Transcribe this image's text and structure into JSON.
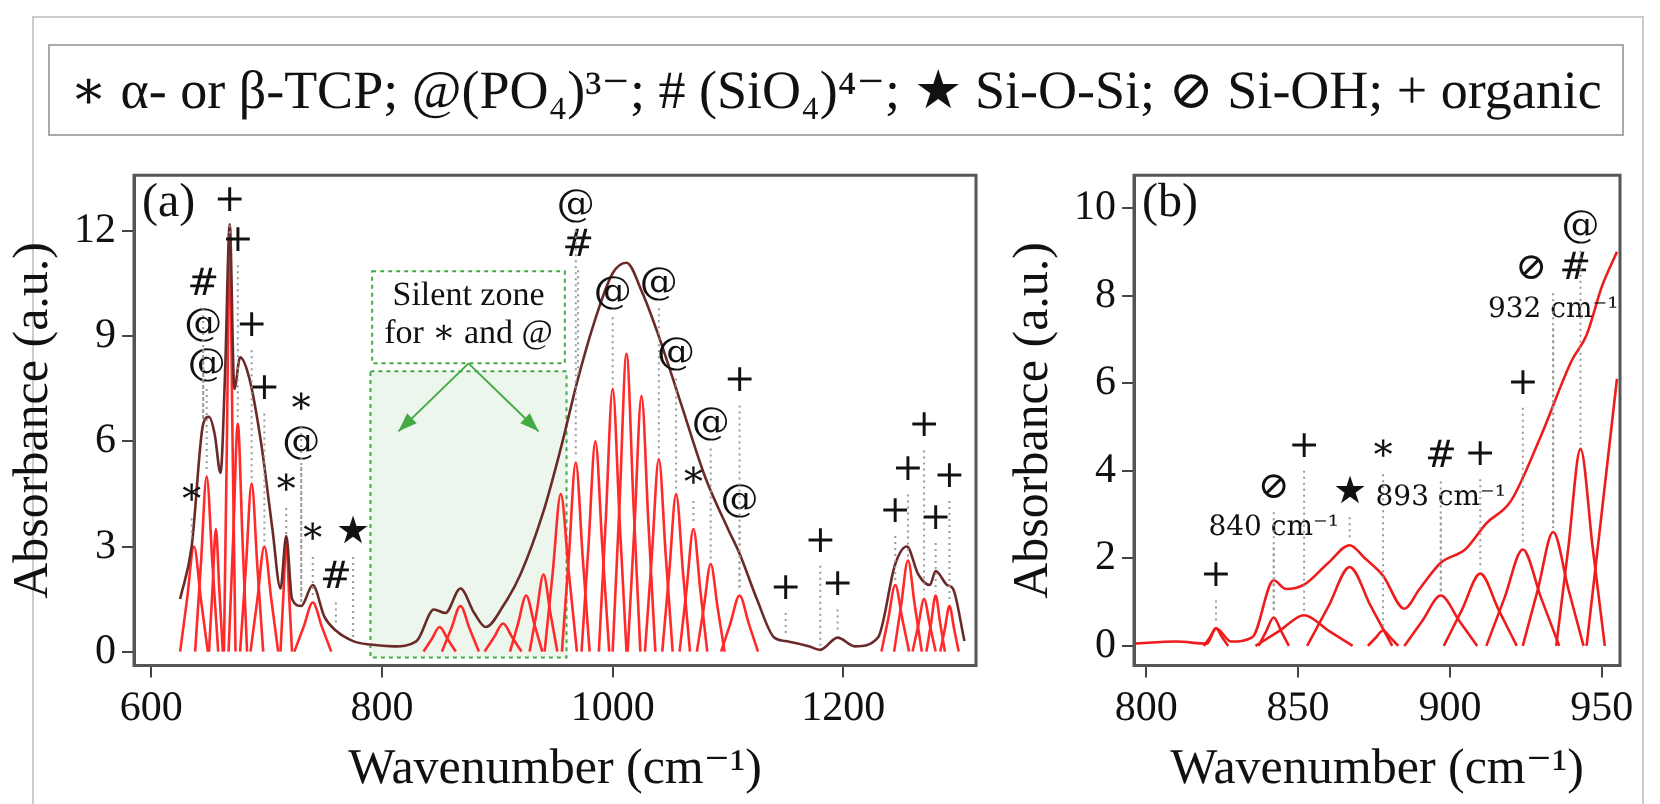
{
  "chart_data": [
    {
      "type": "line",
      "title": "∗ α- or β-TCP; @(PO₄)³⁻; # (SiO₄)⁴⁻; ★ Si-O-Si; ⊘ Si-OH; + organic",
      "xlabel": "Wavenumber (cm⁻¹)",
      "ylabel": "Absorbance (a.u.)",
      "xlim": [
        585,
        1315
      ],
      "ylim": [
        -0.4,
        13.6
      ],
      "xticks": [
        600,
        800,
        1000,
        1200
      ],
      "yticks": [
        0,
        3,
        6,
        9,
        12
      ],
      "grid": false,
      "legend": false,
      "marker": "none",
      "line_style": "solid",
      "bands": [
        {
          "axis": "x",
          "from": 790,
          "to": 960,
          "label": "Silent zone for ∗ and @",
          "color": "#44aa44"
        }
      ],
      "annotations": [
        "(a)",
        {
          "text": "+",
          "x": 668,
          "y": 11.8
        },
        {
          "text": "@",
          "x": 648,
          "y": 5
        },
        {
          "text": "+",
          "x": 675,
          "y": 6.5
        },
        {
          "text": "@",
          "x": 645,
          "y": 6.5
        },
        {
          "text": "+",
          "x": 687,
          "y": 4.8
        },
        {
          "text": "#",
          "x": 645,
          "y": 6.5
        },
        {
          "text": "∗",
          "x": 717,
          "y": 3.2
        },
        {
          "text": "+",
          "x": 698,
          "y": 3
        },
        {
          "text": "∗",
          "x": 740,
          "y": 1.4
        },
        {
          "text": "#",
          "x": 760,
          "y": 0.6
        },
        {
          "text": "∗",
          "x": 635,
          "y": 3
        },
        {
          "text": "@",
          "x": 730,
          "y": 1.3
        },
        {
          "text": "∗",
          "x": 730,
          "y": 1.3
        },
        {
          "text": "★",
          "x": 775,
          "y": 0.3
        },
        {
          "text": "#",
          "x": 970,
          "y": 7.8
        },
        {
          "text": "@",
          "x": 968,
          "y": 5.4
        },
        {
          "text": "@",
          "x": 1000,
          "y": 7.5
        },
        {
          "text": "∗",
          "x": 1070,
          "y": 3.5
        },
        {
          "text": "@",
          "x": 1040,
          "y": 5.5
        },
        {
          "text": "@",
          "x": 1085,
          "y": 2.5
        },
        {
          "text": "@",
          "x": 1055,
          "y": 4.5
        },
        {
          "text": "@",
          "x": 1110,
          "y": 1.6
        },
        {
          "text": "+",
          "x": 1110,
          "y": 1.6
        },
        {
          "text": "+",
          "x": 1150,
          "y": 0.3
        },
        {
          "text": "+",
          "x": 1180,
          "y": 0.05
        },
        {
          "text": "+",
          "x": 1195,
          "y": 0.4
        },
        {
          "text": "+",
          "x": 1245,
          "y": 1.9
        },
        {
          "text": "+",
          "x": 1256,
          "y": 2.6
        },
        {
          "text": "+",
          "x": 1270,
          "y": 1.5
        },
        {
          "text": "+",
          "x": 1280,
          "y": 1.6
        },
        {
          "text": "+",
          "x": 1292,
          "y": 1.3
        }
      ],
      "series": [
        {
          "color": "#6b2a2a",
          "x": [
            625,
            635,
            645,
            650,
            655,
            660,
            664,
            668,
            672,
            677,
            685,
            695,
            705,
            712,
            717,
            722,
            730,
            740,
            750,
            760,
            775,
            790,
            810,
            830,
            845,
            855,
            868,
            880,
            890,
            905,
            920,
            940,
            955,
            970,
            985,
            1000,
            1012,
            1025,
            1040,
            1060,
            1080,
            1100,
            1110,
            1125,
            1140,
            1150,
            1170,
            1180,
            1195,
            1210,
            1230,
            1245,
            1255,
            1265,
            1275,
            1280,
            1290,
            1295,
            1305
          ],
          "values": [
            1.5,
            3,
            6.5,
            6.7,
            6.2,
            5.1,
            8,
            12.2,
            7.5,
            8.4,
            7.8,
            6,
            3.5,
            1.8,
            3.3,
            1.5,
            1.3,
            1.9,
            1.0,
            0.6,
            0.3,
            0.2,
            0.15,
            0.3,
            1.2,
            1.1,
            1.8,
            1.1,
            0.7,
            1.3,
            2.2,
            4,
            5.8,
            7.8,
            9.5,
            10.8,
            11.1,
            10.3,
            9.0,
            7.0,
            5.0,
            3.5,
            2.8,
            1.5,
            0.4,
            0.3,
            0.15,
            0.05,
            0.4,
            0.15,
            0.4,
            2.5,
            3.0,
            2.2,
            1.9,
            2.3,
            1.9,
            1.8,
            0.3
          ]
        },
        {
          "color": "#ff2a2a",
          "x": [
            625,
            631,
            637,
            643,
            649
          ],
          "values": [
            0,
            1.5,
            3,
            1.5,
            0
          ]
        },
        {
          "color": "#ff2a2a",
          "x": [
            638,
            643,
            648,
            653,
            658
          ],
          "values": [
            0,
            2.5,
            5,
            2.5,
            0
          ]
        },
        {
          "color": "#ff2a2a",
          "x": [
            650,
            653,
            656,
            659,
            662
          ],
          "values": [
            0,
            1.75,
            3.5,
            1.75,
            0
          ]
        },
        {
          "color": "#ff2a2a",
          "x": [
            663,
            665.5,
            668,
            670.5,
            673
          ],
          "values": [
            0,
            5.9,
            11.8,
            5.9,
            0
          ]
        },
        {
          "color": "#ff2a2a",
          "x": [
            667,
            671,
            675,
            679,
            683
          ],
          "values": [
            0,
            3.25,
            6.5,
            3.25,
            0
          ]
        },
        {
          "color": "#ff2a2a",
          "x": [
            677,
            682,
            687,
            692,
            697
          ],
          "values": [
            0,
            2.4,
            4.8,
            2.4,
            0
          ]
        },
        {
          "color": "#ff2a2a",
          "x": [
            686,
            692,
            698,
            704,
            710
          ],
          "values": [
            0,
            1.5,
            3,
            1.5,
            0
          ]
        },
        {
          "color": "#ff2a2a",
          "x": [
            712,
            714.5,
            717,
            719.5,
            722
          ],
          "values": [
            0,
            1.6,
            3.2,
            1.6,
            0
          ]
        },
        {
          "color": "#ff2a2a",
          "x": [
            724,
            732,
            740,
            748,
            756
          ],
          "values": [
            0,
            0.7,
            1.4,
            0.7,
            0
          ]
        },
        {
          "color": "#ff2a2a",
          "x": [
            836,
            843,
            850,
            857,
            864
          ],
          "values": [
            0,
            0.35,
            0.7,
            0.35,
            0
          ]
        },
        {
          "color": "#ff2a2a",
          "x": [
            852,
            860,
            868,
            876,
            884
          ],
          "values": [
            0,
            0.65,
            1.3,
            0.65,
            0
          ]
        },
        {
          "color": "#ff2a2a",
          "x": [
            889,
            897,
            905,
            913,
            921
          ],
          "values": [
            0,
            0.4,
            0.8,
            0.4,
            0
          ]
        },
        {
          "color": "#ff2a2a",
          "x": [
            911,
            918,
            925,
            932,
            939
          ],
          "values": [
            0,
            0.8,
            1.6,
            0.8,
            0
          ]
        },
        {
          "color": "#ff2a2a",
          "x": [
            928,
            934,
            940,
            946,
            952
          ],
          "values": [
            0,
            1.1,
            2.2,
            1.1,
            0
          ]
        },
        {
          "color": "#ff2a2a",
          "x": [
            941,
            948,
            955,
            962,
            969
          ],
          "values": [
            0,
            2.25,
            4.5,
            2.25,
            0
          ]
        },
        {
          "color": "#ff2a2a",
          "x": [
            956,
            962,
            968,
            974,
            980
          ],
          "values": [
            0,
            2.7,
            5.4,
            2.7,
            0
          ]
        },
        {
          "color": "#ff2a2a",
          "x": [
            973,
            979,
            985,
            991,
            997
          ],
          "values": [
            0,
            3,
            6,
            3,
            0
          ]
        },
        {
          "color": "#ff2a2a",
          "x": [
            988,
            994,
            1000,
            1006,
            1012
          ],
          "values": [
            0,
            3.75,
            7.5,
            3.75,
            0
          ]
        },
        {
          "color": "#ff2a2a",
          "x": [
            1000,
            1006,
            1012,
            1018,
            1024
          ],
          "values": [
            0,
            4.25,
            8.5,
            4.25,
            0
          ]
        },
        {
          "color": "#ff2a2a",
          "x": [
            1013,
            1019,
            1025,
            1031,
            1037
          ],
          "values": [
            0,
            3.65,
            7.3,
            3.65,
            0
          ]
        },
        {
          "color": "#ff2a2a",
          "x": [
            1028,
            1034,
            1040,
            1046,
            1052
          ],
          "values": [
            0,
            2.75,
            5.5,
            2.75,
            0
          ]
        },
        {
          "color": "#ff2a2a",
          "x": [
            1043,
            1049,
            1055,
            1061,
            1067
          ],
          "values": [
            0,
            2.25,
            4.5,
            2.25,
            0
          ]
        },
        {
          "color": "#ff2a2a",
          "x": [
            1058,
            1064,
            1070,
            1076,
            1082
          ],
          "values": [
            0,
            1.75,
            3.5,
            1.75,
            0
          ]
        },
        {
          "color": "#ff2a2a",
          "x": [
            1073,
            1079,
            1085,
            1091,
            1097
          ],
          "values": [
            0,
            1.25,
            2.5,
            1.25,
            0
          ]
        },
        {
          "color": "#ff2a2a",
          "x": [
            1094,
            1102,
            1110,
            1118,
            1126
          ],
          "values": [
            0,
            0.8,
            1.6,
            0.8,
            0
          ]
        },
        {
          "color": "#ff2a2a",
          "x": [
            1233,
            1239,
            1245,
            1251,
            1257
          ],
          "values": [
            0,
            0.95,
            1.9,
            0.95,
            0
          ]
        },
        {
          "color": "#ff2a2a",
          "x": [
            1244,
            1250,
            1256,
            1262,
            1268
          ],
          "values": [
            0,
            1.3,
            2.6,
            1.3,
            0
          ]
        },
        {
          "color": "#ff2a2a",
          "x": [
            1260,
            1265,
            1270,
            1275,
            1280
          ],
          "values": [
            0,
            0.75,
            1.5,
            0.75,
            0
          ]
        },
        {
          "color": "#ff2a2a",
          "x": [
            1272,
            1276,
            1280,
            1284,
            1288
          ],
          "values": [
            0,
            0.8,
            1.6,
            0.8,
            0
          ]
        },
        {
          "color": "#ff2a2a",
          "x": [
            1284,
            1288,
            1292,
            1296,
            1300
          ],
          "values": [
            0,
            0.65,
            1.3,
            0.65,
            0
          ]
        }
      ]
    },
    {
      "type": "line",
      "xlabel": "Wavenumber (cm⁻¹)",
      "ylabel": "Absorbance (a.u.)",
      "xlim": [
        796,
        956
      ],
      "ylim": [
        -0.45,
        10.75
      ],
      "xticks": [
        800,
        850,
        900,
        950
      ],
      "yticks": [
        0,
        2,
        4,
        6,
        8,
        10
      ],
      "grid": false,
      "legend": false,
      "marker": "none",
      "line_style": "solid",
      "annotations": [
        "(b)",
        {
          "text": "+",
          "x": 823,
          "y": 0.4
        },
        {
          "text": "840 cm⁻¹",
          "x": 842,
          "y": 0.65
        },
        {
          "text": "⊘",
          "x": 842,
          "y": 0.65
        },
        {
          "text": "+",
          "x": 852,
          "y": 0.7
        },
        {
          "text": "★",
          "x": 867,
          "y": 2.3
        },
        {
          "text": "∗",
          "x": 878,
          "y": 0.35
        },
        {
          "text": "893 cm⁻¹",
          "x": 897,
          "y": 1.15
        },
        {
          "text": "#",
          "x": 897,
          "y": 1.15
        },
        {
          "text": "+",
          "x": 910,
          "y": 1.65
        },
        {
          "text": "+",
          "x": 924,
          "y": 2.2
        },
        {
          "text": "932 cm⁻¹",
          "x": 934,
          "y": 2.6
        },
        {
          "text": "⊘ #",
          "x": 934,
          "y": 2.6
        },
        {
          "text": "@",
          "x": 943,
          "y": 4.5
        }
      ],
      "series": [
        {
          "color": "#ee1c1c",
          "x": [
            796,
            810,
            820,
            823,
            828,
            835,
            842,
            846,
            852,
            860,
            867,
            872,
            878,
            885,
            890,
            897,
            905,
            912,
            920,
            930,
            940,
            945,
            950,
            955
          ],
          "values": [
            0.05,
            0.1,
            0.05,
            0.4,
            0.1,
            0.2,
            1.5,
            1.3,
            1.4,
            1.9,
            2.3,
            2.0,
            1.6,
            0.85,
            1.3,
            1.9,
            2.2,
            2.8,
            3.3,
            4.8,
            6.5,
            7.1,
            8.2,
            9.0
          ]
        },
        {
          "color": "#ee1c1c",
          "x": [
            819,
            821,
            823,
            825,
            827
          ],
          "values": [
            0,
            0.2,
            0.4,
            0.2,
            0
          ]
        },
        {
          "color": "#ee1c1c",
          "x": [
            837,
            839.5,
            842,
            844.5,
            847
          ],
          "values": [
            0,
            0.33,
            0.65,
            0.33,
            0
          ]
        },
        {
          "color": "#ee1c1c",
          "x": [
            836,
            844,
            852,
            860,
            868
          ],
          "values": [
            0,
            0.35,
            0.7,
            0.35,
            0
          ]
        },
        {
          "color": "#ee1c1c",
          "x": [
            853,
            860,
            867,
            874,
            881
          ],
          "values": [
            0,
            0.9,
            1.8,
            0.9,
            0
          ]
        },
        {
          "color": "#ee1c1c",
          "x": [
            873,
            875.5,
            878,
            880.5,
            883
          ],
          "values": [
            0,
            0.18,
            0.35,
            0.18,
            0
          ]
        },
        {
          "color": "#ee1c1c",
          "x": [
            885,
            891,
            897,
            903,
            909
          ],
          "values": [
            0,
            0.58,
            1.15,
            0.58,
            0
          ]
        },
        {
          "color": "#ee1c1c",
          "x": [
            898,
            904,
            910,
            916,
            922
          ],
          "values": [
            0,
            0.83,
            1.65,
            0.83,
            0
          ]
        },
        {
          "color": "#ee1c1c",
          "x": [
            912,
            918,
            924,
            930,
            936
          ],
          "values": [
            0,
            1.1,
            2.2,
            1.1,
            0
          ]
        },
        {
          "color": "#ee1c1c",
          "x": [
            924,
            929,
            934,
            939,
            944
          ],
          "values": [
            0,
            1.3,
            2.6,
            1.3,
            0
          ]
        },
        {
          "color": "#ee1c1c",
          "x": [
            935,
            939,
            943,
            947,
            951
          ],
          "values": [
            0,
            2.25,
            4.5,
            2.25,
            0
          ]
        },
        {
          "color": "#ee1c1c",
          "x": [
            945,
            950,
            955
          ],
          "values": [
            0,
            3.05,
            6.1
          ]
        }
      ]
    }
  ]
}
